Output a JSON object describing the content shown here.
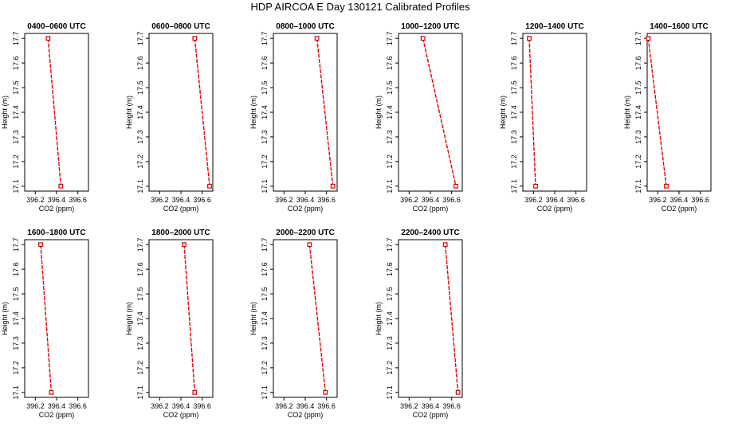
{
  "chart_data": {
    "type": "line",
    "title": "HDP AIRCOA E  Day 130121  Calibrated Profiles",
    "xlabel": "CO2 (ppm)",
    "ylabel": "Height (m)",
    "xlim": [
      396.1,
      396.7
    ],
    "ylim": [
      17.08,
      17.72
    ],
    "xticks": [
      "396.2",
      "396.4",
      "396.6"
    ],
    "yticks": [
      "17.1",
      "17.2",
      "17.3",
      "17.4",
      "17.5",
      "17.6",
      "17.7"
    ],
    "series_color": "#dd0000",
    "panels": [
      {
        "title": "0400–0600 UTC",
        "points": [
          {
            "x": 396.32,
            "y": 17.7
          },
          {
            "x": 396.44,
            "y": 17.1
          }
        ]
      },
      {
        "title": "0600–0800 UTC",
        "points": [
          {
            "x": 396.53,
            "y": 17.7
          },
          {
            "x": 396.67,
            "y": 17.1
          }
        ]
      },
      {
        "title": "0800–1000 UTC",
        "points": [
          {
            "x": 396.51,
            "y": 17.7
          },
          {
            "x": 396.66,
            "y": 17.1
          }
        ]
      },
      {
        "title": "1000–1200 UTC",
        "points": [
          {
            "x": 396.33,
            "y": 17.7
          },
          {
            "x": 396.64,
            "y": 17.1
          }
        ]
      },
      {
        "title": "1200–1400 UTC",
        "points": [
          {
            "x": 396.16,
            "y": 17.7
          },
          {
            "x": 396.22,
            "y": 17.1
          }
        ]
      },
      {
        "title": "1400–1600 UTC",
        "points": [
          {
            "x": 396.11,
            "y": 17.7
          },
          {
            "x": 396.28,
            "y": 17.1
          }
        ]
      },
      {
        "title": "1600–1800 UTC",
        "points": [
          {
            "x": 396.25,
            "y": 17.7
          },
          {
            "x": 396.35,
            "y": 17.1
          }
        ]
      },
      {
        "title": "1800–2000 UTC",
        "points": [
          {
            "x": 396.43,
            "y": 17.7
          },
          {
            "x": 396.53,
            "y": 17.1
          }
        ]
      },
      {
        "title": "2000–2200 UTC",
        "points": [
          {
            "x": 396.44,
            "y": 17.7
          },
          {
            "x": 396.59,
            "y": 17.1
          }
        ]
      },
      {
        "title": "2200–2400 UTC",
        "points": [
          {
            "x": 396.54,
            "y": 17.7
          },
          {
            "x": 396.66,
            "y": 17.1
          }
        ]
      }
    ]
  }
}
